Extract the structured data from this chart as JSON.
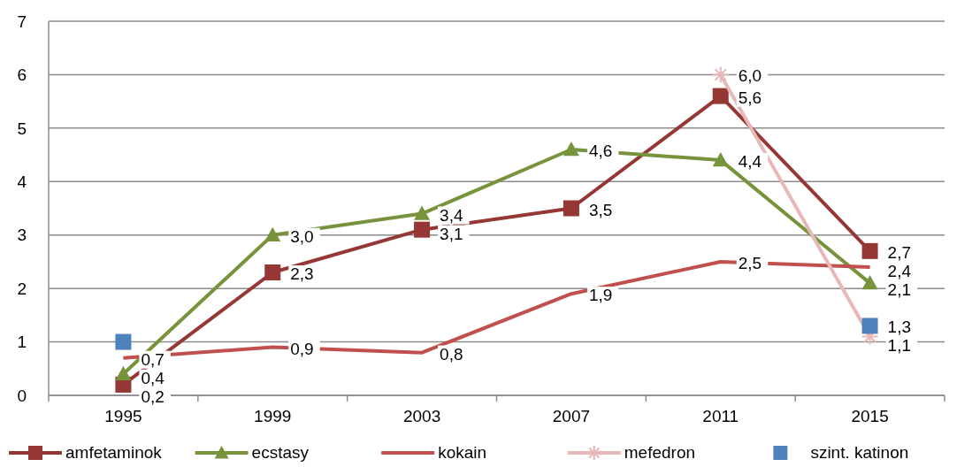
{
  "chart_data": {
    "type": "line",
    "categories": [
      "1995",
      "1999",
      "2003",
      "2007",
      "2011",
      "2015"
    ],
    "ylim": [
      0,
      7
    ],
    "yticks": [
      0,
      1,
      2,
      3,
      4,
      5,
      6,
      7
    ],
    "grid": "y",
    "legend": "bottom",
    "series": [
      {
        "name": "amfetaminok",
        "color": "#953735",
        "marker": "square",
        "values": [
          0.2,
          2.3,
          3.1,
          3.5,
          5.6,
          2.7
        ],
        "value_labels": [
          "0,2",
          "2,3",
          "3,1",
          "3,5",
          "5,6",
          "2,7"
        ]
      },
      {
        "name": "ecstasy",
        "color": "#77933c",
        "marker": "triangle",
        "values": [
          0.4,
          3.0,
          3.4,
          4.6,
          4.4,
          2.1
        ],
        "value_labels": [
          "0,4",
          "3,0",
          "3,4",
          "4,6",
          "4,4",
          "2,1"
        ]
      },
      {
        "name": "kokain",
        "color": "#c0504d",
        "marker": "none",
        "values": [
          0.7,
          0.9,
          0.8,
          1.9,
          2.5,
          2.4
        ],
        "value_labels": [
          "0,7",
          "0,9",
          "0,8",
          "1,9",
          "2,5",
          "2,4"
        ]
      },
      {
        "name": "mefedron",
        "color": "#e6b9b8",
        "marker": "cross",
        "values": [
          null,
          null,
          null,
          null,
          6.0,
          1.1
        ],
        "value_labels": [
          null,
          null,
          null,
          null,
          "6,0",
          "1,1"
        ]
      },
      {
        "name": "szint. katinon",
        "type": "scatter",
        "color": "#4f81bd",
        "marker": "square",
        "values": [
          1.0,
          null,
          null,
          null,
          null,
          1.3
        ],
        "value_labels": [
          null,
          null,
          null,
          null,
          null,
          "1,3"
        ]
      }
    ]
  }
}
